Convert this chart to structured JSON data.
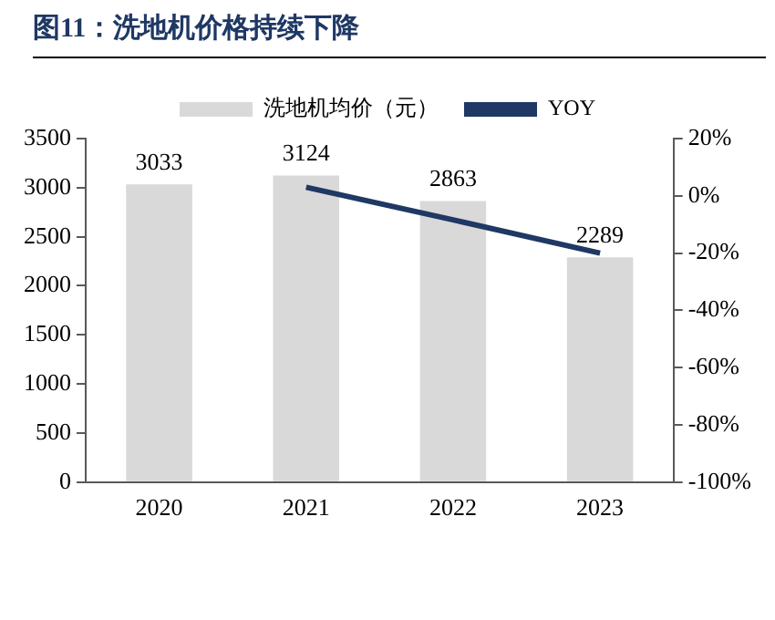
{
  "chart_data": {
    "type": "bar",
    "title": "图11：洗地机价格持续下降",
    "categories": [
      "2020",
      "2021",
      "2022",
      "2023"
    ],
    "series": [
      {
        "name": "洗地机均价（元）",
        "color": "#d9d9d9",
        "values": [
          3033,
          3124,
          2863,
          2289
        ],
        "value_labels": [
          "3033",
          "3124",
          "2863",
          "2289"
        ]
      },
      {
        "name": "YOY",
        "type": "line",
        "axis": "y2",
        "color": "#1f3864",
        "values": [
          null,
          3.0,
          -8.4,
          -20.0
        ]
      }
    ],
    "ylim": [
      0,
      3500
    ],
    "yticks": [
      0,
      500,
      1000,
      1500,
      2000,
      2500,
      3000,
      3500
    ],
    "y2lim": [
      -100,
      20
    ],
    "y2ticks": [
      {
        "value": -100,
        "label": "-100%"
      },
      {
        "value": -80,
        "label": "-80%"
      },
      {
        "value": -60,
        "label": "-60%"
      },
      {
        "value": -40,
        "label": "-40%"
      },
      {
        "value": -20,
        "label": "-20%"
      },
      {
        "value": 0,
        "label": "0%"
      },
      {
        "value": 20,
        "label": "20%"
      }
    ],
    "grid": false,
    "legend": "top",
    "marker": "none"
  }
}
